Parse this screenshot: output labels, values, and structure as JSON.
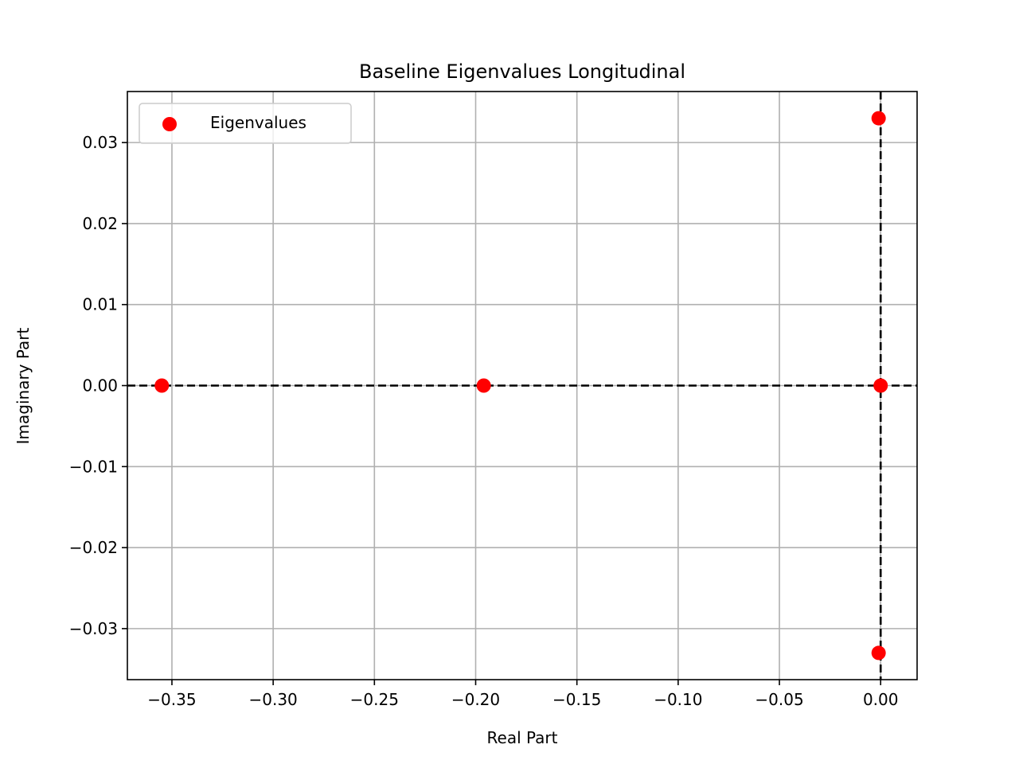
{
  "chart_data": {
    "type": "scatter",
    "title": "Baseline Eigenvalues Longitudinal",
    "xlabel": "Real Part",
    "ylabel": "Imaginary Part",
    "xlim": [
      -0.372,
      0.018
    ],
    "ylim": [
      -0.0363,
      0.0363
    ],
    "xticks": [
      -0.35,
      -0.3,
      -0.25,
      -0.2,
      -0.15,
      -0.1,
      -0.05,
      0.0
    ],
    "xtick_labels": [
      "−0.35",
      "−0.30",
      "−0.25",
      "−0.20",
      "−0.15",
      "−0.10",
      "−0.05",
      "0.00"
    ],
    "yticks": [
      0.03,
      0.02,
      0.01,
      0.0,
      -0.01,
      -0.02,
      -0.03
    ],
    "ytick_labels": [
      "0.03",
      "0.02",
      "0.01",
      "0.00",
      "−0.01",
      "−0.02",
      "−0.03"
    ],
    "grid": true,
    "legend_position": "top-left",
    "reference_lines": [
      {
        "orientation": "horizontal",
        "value": 0.0,
        "style": "dashed",
        "color": "#000000"
      },
      {
        "orientation": "vertical",
        "value": 0.0,
        "style": "dashed",
        "color": "#000000"
      }
    ],
    "series": [
      {
        "name": "Eigenvalues",
        "color": "#ff0000",
        "x": [
          -0.355,
          -0.196,
          -0.001,
          -0.001,
          0.0
        ],
        "y": [
          0.0,
          0.0,
          0.033,
          -0.033,
          0.0
        ]
      }
    ]
  }
}
